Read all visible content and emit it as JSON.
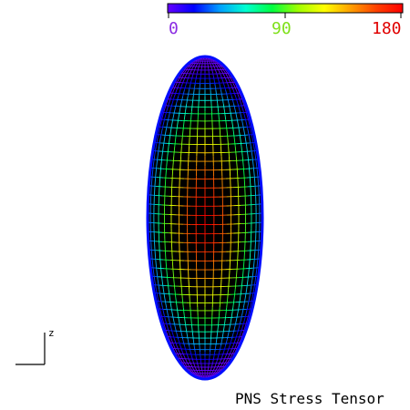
{
  "colorbar": {
    "min_label": "0",
    "mid_label": "90",
    "max_label": "180",
    "min_color": "#8a2be2",
    "mid_color": "#7fe01a",
    "max_color": "#e00000",
    "stops": [
      "#6600ff",
      "#0000ff",
      "#00a0ff",
      "#00ffd0",
      "#00ff40",
      "#a0ff00",
      "#ffff00",
      "#ffa000",
      "#ff4000",
      "#ff0000"
    ]
  },
  "axis": {
    "label": "z"
  },
  "caption": "PNS Stress Tensor",
  "mesh": {
    "lat_lines": 55,
    "lon_lines": 20,
    "value_range": [
      0,
      180
    ],
    "center_value": 180,
    "edge_value": 0
  }
}
